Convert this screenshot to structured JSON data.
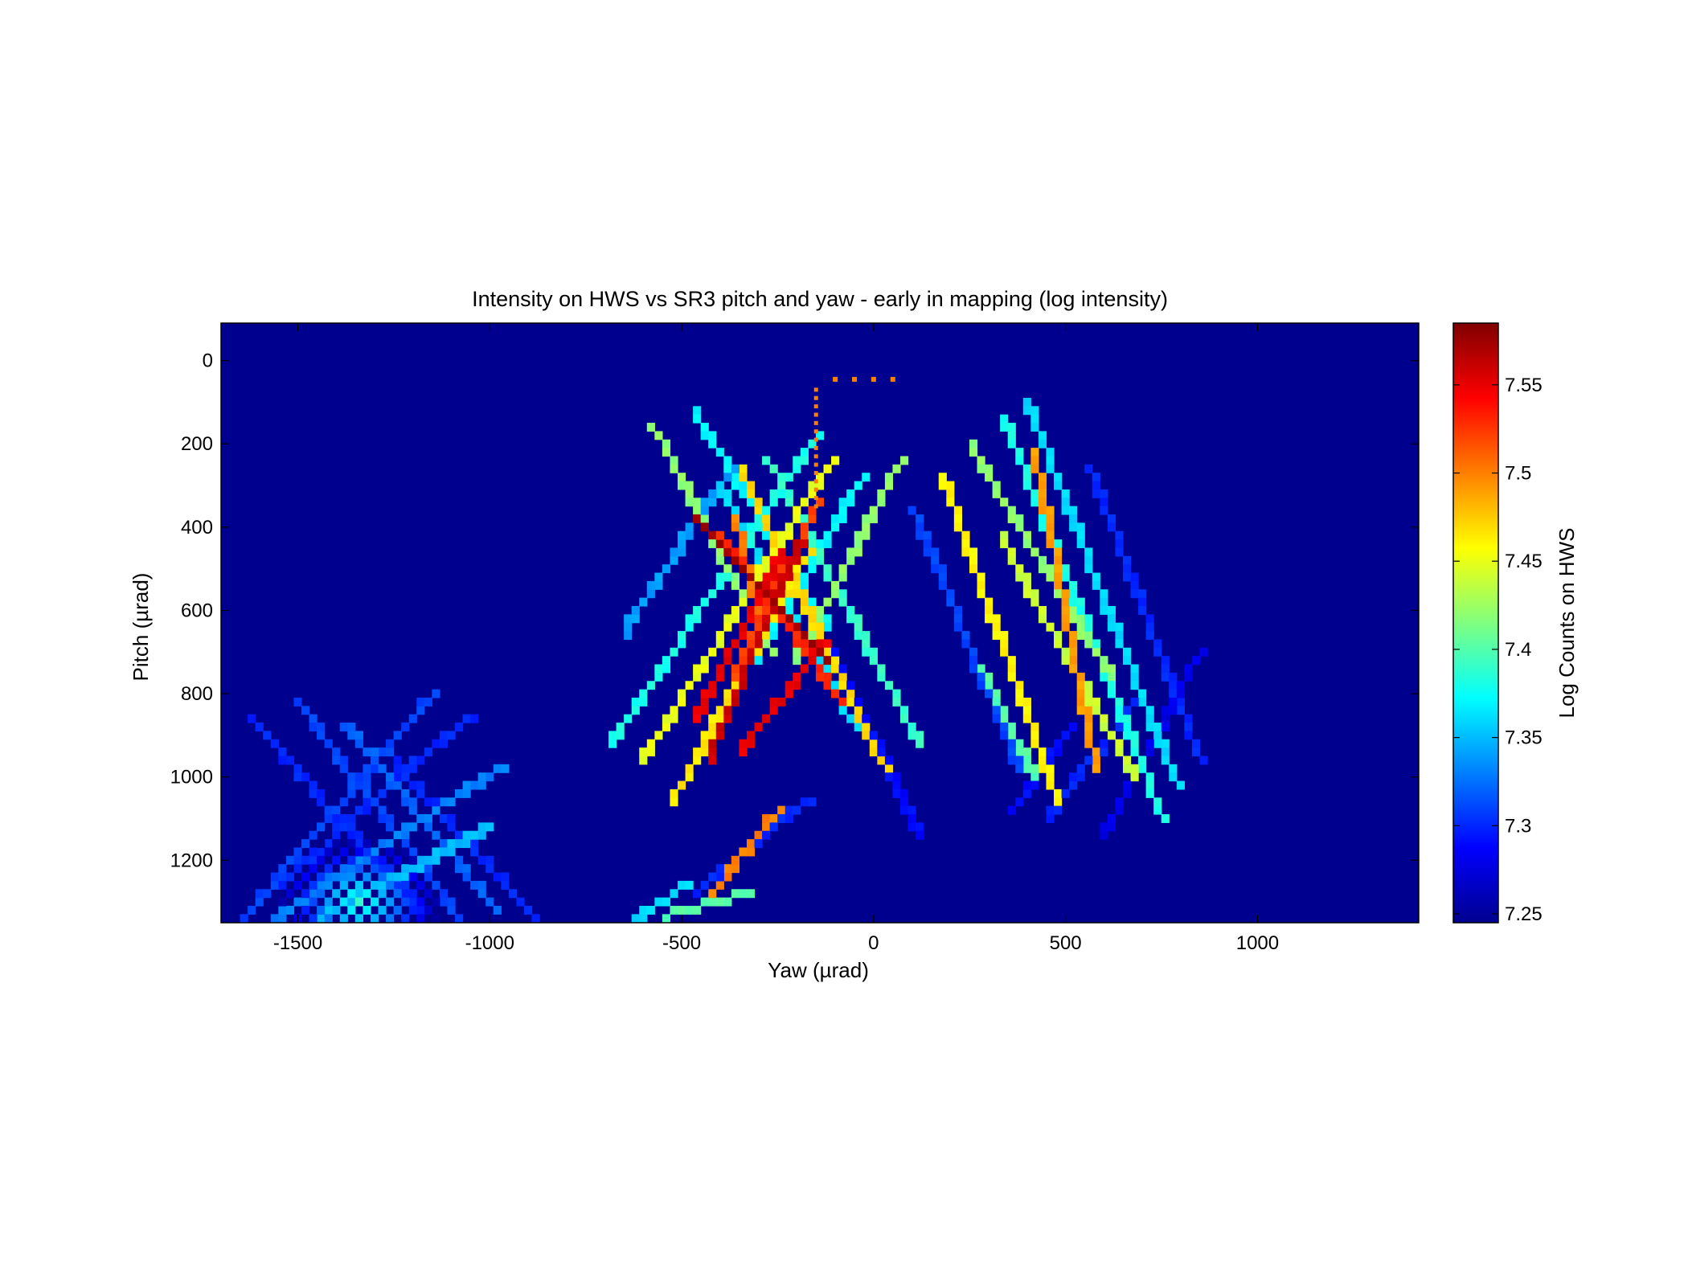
{
  "chart_data": {
    "type": "heatmap",
    "title": "Intensity on HWS vs SR3 pitch and yaw - early in mapping (log intensity)",
    "xlabel": "Yaw (µrad)",
    "ylabel": "Pitch (µrad)",
    "colorbar_label": "Log Counts on HWS",
    "xlim": [
      -1700,
      1420
    ],
    "ylim": [
      -90,
      1350
    ],
    "y_reversed": true,
    "x_ticks": [
      -1500,
      -1000,
      -500,
      0,
      500,
      1000
    ],
    "x_tick_labels": [
      "-1500",
      "-1000",
      "-500",
      "0",
      "500",
      "1000"
    ],
    "y_ticks": [
      0,
      200,
      400,
      600,
      800,
      1000,
      1200
    ],
    "y_tick_labels": [
      "0",
      "200",
      "400",
      "600",
      "800",
      "1000",
      "1200"
    ],
    "color_range": [
      7.245,
      7.585
    ],
    "colorbar_ticks": [
      7.25,
      7.3,
      7.35,
      7.4,
      7.45,
      7.5,
      7.55
    ],
    "colorbar_tick_labels": [
      "7.25",
      "7.3",
      "7.35",
      "7.4",
      "7.45",
      "7.5",
      "7.55"
    ],
    "colormap": "jet",
    "background_value": 7.247,
    "grid": false,
    "segments": [
      {
        "x0": -580,
        "y0": 150,
        "x1": -270,
        "y1": 690,
        "value": 7.42
      },
      {
        "x0": -470,
        "y0": 120,
        "x1": -120,
        "y1": 640,
        "value": 7.37
      },
      {
        "x0": -400,
        "y0": 300,
        "x1": -50,
        "y1": 880,
        "value": 7.36
      },
      {
        "x0": -350,
        "y0": 260,
        "x1": 30,
        "y1": 980,
        "value": 7.47
      },
      {
        "x0": -280,
        "y0": 230,
        "x1": 120,
        "y1": 920,
        "value": 7.39
      },
      {
        "x0": -470,
        "y0": 370,
        "x1": -120,
        "y1": 720,
        "value": 7.575
      },
      {
        "x0": -400,
        "y0": 420,
        "x1": -80,
        "y1": 820,
        "value": 7.53
      },
      {
        "x0": -360,
        "y0": 380,
        "x1": -300,
        "y1": 620,
        "value": 7.5
      },
      {
        "x0": -650,
        "y0": 650,
        "x1": -370,
        "y1": 250,
        "value": 7.34
      },
      {
        "x0": -680,
        "y0": 920,
        "x1": -150,
        "y1": 180,
        "value": 7.38
      },
      {
        "x0": -600,
        "y0": 960,
        "x1": -100,
        "y1": 230,
        "value": 7.45
      },
      {
        "x0": -520,
        "y0": 1050,
        "x1": -170,
        "y1": 460,
        "value": 7.465
      },
      {
        "x0": -460,
        "y0": 860,
        "x1": -240,
        "y1": 460,
        "value": 7.55
      },
      {
        "x0": -430,
        "y0": 950,
        "x1": -190,
        "y1": 430,
        "value": 7.56
      },
      {
        "x0": -350,
        "y0": 940,
        "x1": -120,
        "y1": 670,
        "value": 7.55
      },
      {
        "x0": -370,
        "y0": 760,
        "x1": -140,
        "y1": 330,
        "value": 7.52
      },
      {
        "x0": -300,
        "y0": 710,
        "x1": -30,
        "y1": 280,
        "value": 7.37
      },
      {
        "x0": -200,
        "y0": 720,
        "x1": 80,
        "y1": 230,
        "value": 7.42
      },
      {
        "x0": 180,
        "y0": 280,
        "x1": 480,
        "y1": 1050,
        "value": 7.46
      },
      {
        "x0": 250,
        "y0": 200,
        "x1": 620,
        "y1": 760,
        "value": 7.42
      },
      {
        "x0": 340,
        "y0": 140,
        "x1": 750,
        "y1": 1090,
        "value": 7.38
      },
      {
        "x0": 400,
        "y0": 100,
        "x1": 790,
        "y1": 1020,
        "value": 7.36
      },
      {
        "x0": 420,
        "y0": 220,
        "x1": 580,
        "y1": 980,
        "value": 7.49
      },
      {
        "x0": 330,
        "y0": 420,
        "x1": 680,
        "y1": 1000,
        "value": 7.44
      },
      {
        "x0": 560,
        "y0": 250,
        "x1": 850,
        "y1": 950,
        "value": 7.3
      },
      {
        "x0": 280,
        "y0": 730,
        "x1": 420,
        "y1": 1000,
        "value": 7.4
      },
      {
        "x0": 100,
        "y0": 350,
        "x1": 380,
        "y1": 980,
        "value": 7.31
      },
      {
        "x0": -120,
        "y0": 680,
        "x1": 120,
        "y1": 1140,
        "value": 7.29
      },
      {
        "x0": 450,
        "y0": 1100,
        "x1": 700,
        "y1": 800,
        "value": 7.3
      },
      {
        "x0": 600,
        "y0": 1140,
        "x1": 850,
        "y1": 700,
        "value": 7.28
      },
      {
        "x0": 360,
        "y0": 1080,
        "x1": 520,
        "y1": 880,
        "value": 7.29
      },
      {
        "x0": -540,
        "y0": 1330,
        "x1": -330,
        "y1": 1280,
        "value": 7.4
      },
      {
        "x0": -420,
        "y0": 1280,
        "x1": -250,
        "y1": 1080,
        "value": 7.5
      },
      {
        "x0": -460,
        "y0": 1270,
        "x1": -160,
        "y1": 1050,
        "value": 7.3
      },
      {
        "x0": -620,
        "y0": 1340,
        "x1": -490,
        "y1": 1260,
        "value": 7.36
      },
      {
        "x0": -1640,
        "y0": 1340,
        "x1": -1150,
        "y1": 800,
        "value": 7.31
      },
      {
        "x0": -1600,
        "y0": 1300,
        "x1": -1050,
        "y1": 850,
        "value": 7.3
      },
      {
        "x0": -1560,
        "y0": 1340,
        "x1": -960,
        "y1": 970,
        "value": 7.33
      },
      {
        "x0": -1620,
        "y0": 860,
        "x1": -1180,
        "y1": 1320,
        "value": 7.3
      },
      {
        "x0": -1500,
        "y0": 820,
        "x1": -1080,
        "y1": 1330,
        "value": 7.31
      },
      {
        "x0": -1380,
        "y0": 870,
        "x1": -980,
        "y1": 1320,
        "value": 7.32
      },
      {
        "x0": -1250,
        "y0": 960,
        "x1": -880,
        "y1": 1340,
        "value": 7.3
      },
      {
        "x0": -1450,
        "y0": 1340,
        "x1": -1000,
        "y1": 1120,
        "value": 7.35
      }
    ],
    "dot_column": {
      "x": -150,
      "y_from": 70,
      "y_to": 350,
      "value": 7.5
    },
    "dot_row": {
      "x_from": -100,
      "x_to": 50,
      "y": 45,
      "value": 7.5
    },
    "hotspot": {
      "x": -1350,
      "y": 1300,
      "value": 7.39
    }
  }
}
